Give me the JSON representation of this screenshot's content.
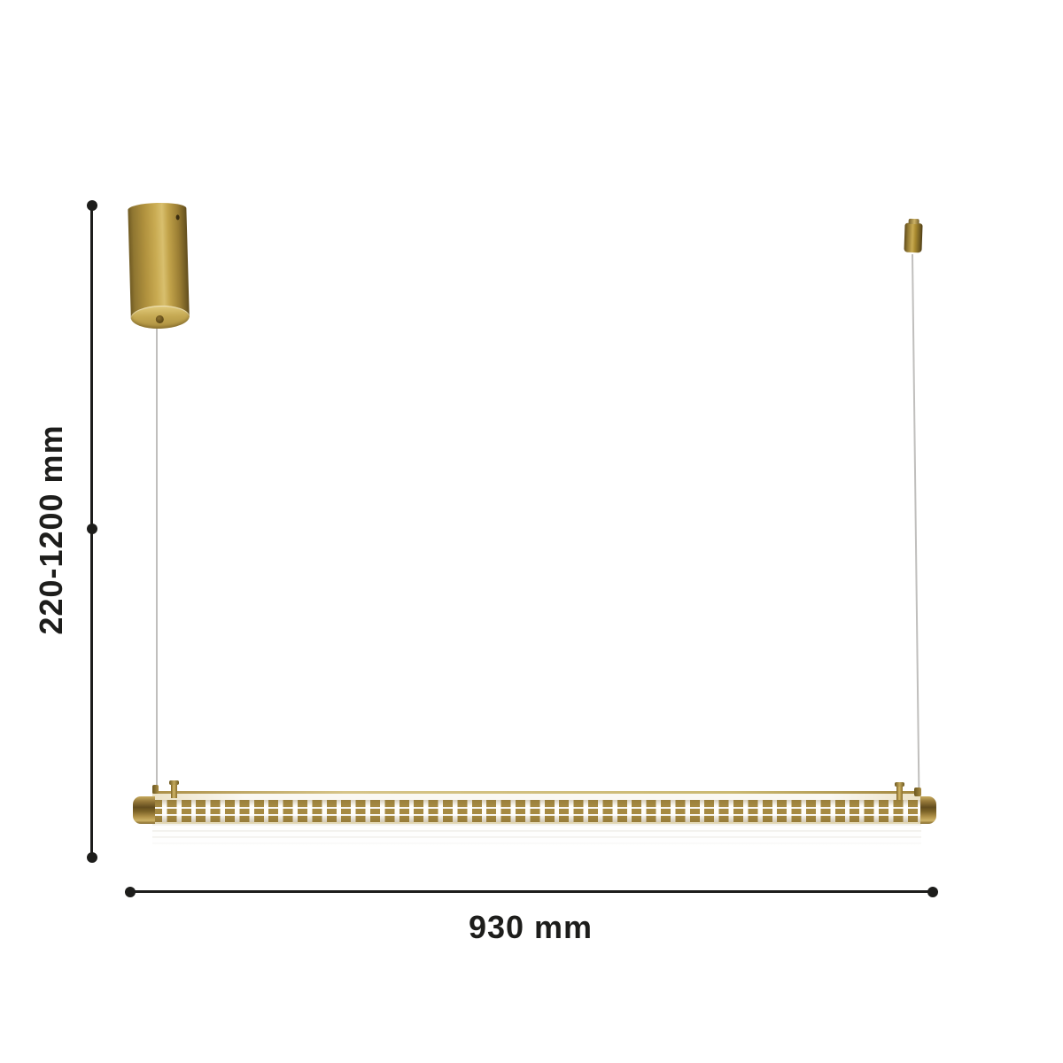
{
  "diagram": {
    "type": "product-dimension-drawing",
    "dimensions": {
      "height_label": "220-1200 mm",
      "width_label": "930 mm"
    },
    "parts": {
      "canopy": "ceiling-canopy-cylinder",
      "wire_left": "suspension-wire-left",
      "wire_right": "suspension-wire-right",
      "gripper": "cable-gripper-fitting",
      "tube": "linear-led-light-tube",
      "cap_left": "tube-end-cap-left",
      "cap_right": "tube-end-cap-right"
    },
    "colors": {
      "brass_dark": "#6f5a22",
      "brass_mid": "#b3953f",
      "brass_light": "#d8bf6e",
      "slot_brass": "#a68a42",
      "dimension_line": "#1d1d1b",
      "wire": "#c0bfbd",
      "background": "#ffffff"
    }
  }
}
